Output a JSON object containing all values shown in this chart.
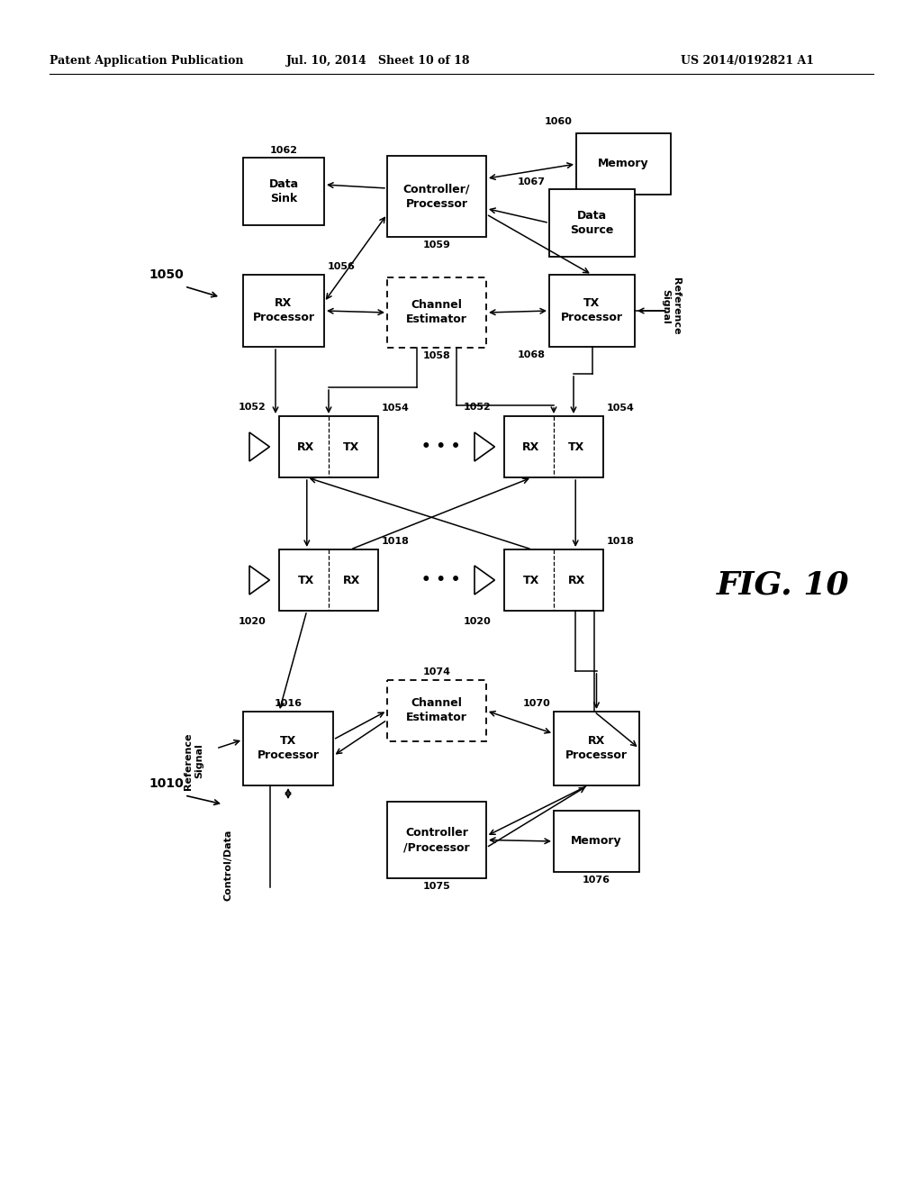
{
  "header_left": "Patent Application Publication",
  "header_mid": "Jul. 10, 2014   Sheet 10 of 18",
  "header_right": "US 2014/0192821 A1",
  "fig_number": "FIG. 10",
  "bg_color": "#ffffff"
}
